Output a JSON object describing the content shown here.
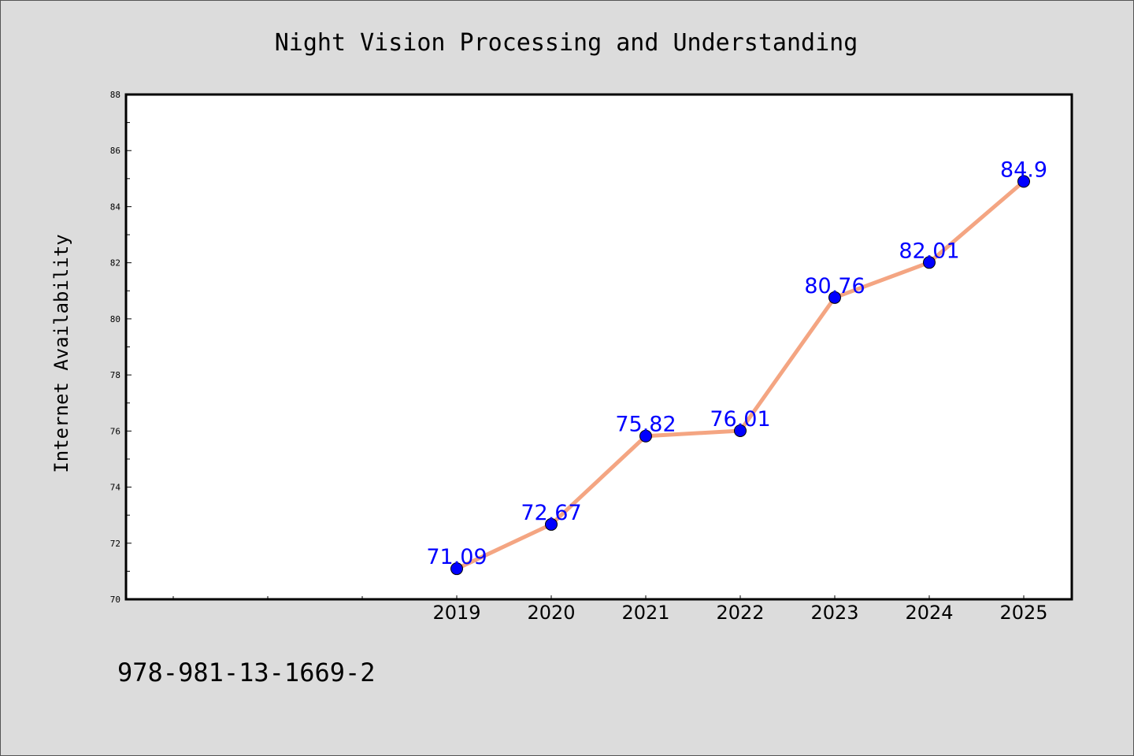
{
  "chart_data": {
    "type": "line",
    "title": "Night Vision Processing and Understanding",
    "xlabel": "",
    "ylabel": "Internet Availability",
    "categories": [
      "2019",
      "2020",
      "2021",
      "2022",
      "2023",
      "2024",
      "2025"
    ],
    "series": [
      {
        "values": [
          71.09,
          72.67,
          75.82,
          76.01,
          80.76,
          82.01,
          84.9
        ]
      }
    ],
    "data_labels": [
      "71.09",
      "72.67",
      "75.82",
      "76.01",
      "80.76",
      "82.01",
      "84.9"
    ],
    "ylim": [
      70,
      88
    ],
    "yticks": [
      70,
      72,
      74,
      76,
      78,
      80,
      82,
      84,
      86,
      88
    ],
    "grid": false,
    "legend": "none",
    "colors": {
      "line": "#f4a582",
      "marker": "#0000ff",
      "label": "#0000ff",
      "background": "#dcdcdc",
      "plot_background": "#ffffff"
    }
  },
  "footer": {
    "isbn": "978-981-13-1669-2"
  }
}
